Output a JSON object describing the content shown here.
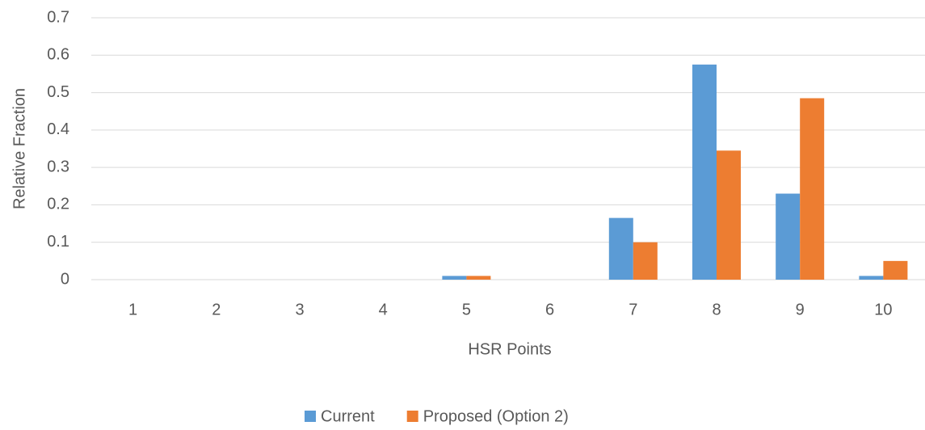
{
  "chart_data": {
    "type": "bar",
    "categories": [
      "1",
      "2",
      "3",
      "4",
      "5",
      "6",
      "7",
      "8",
      "9",
      "10"
    ],
    "series": [
      {
        "name": "Current",
        "color": "#5b9bd5",
        "values": [
          0,
          0,
          0,
          0,
          0.01,
          0,
          0.165,
          0.575,
          0.23,
          0.01
        ]
      },
      {
        "name": "Proposed (Option 2)",
        "color": "#ed7d31",
        "values": [
          0,
          0,
          0,
          0,
          0.01,
          0,
          0.1,
          0.345,
          0.485,
          0.05
        ]
      }
    ],
    "x_label": "HSR Points",
    "y_label": "Relative Fraction",
    "ylim": [
      0,
      0.7
    ],
    "yticks": [
      0,
      0.1,
      0.2,
      0.3,
      0.4,
      0.5,
      0.6,
      0.7
    ],
    "grid": true,
    "legend": "bottom"
  }
}
